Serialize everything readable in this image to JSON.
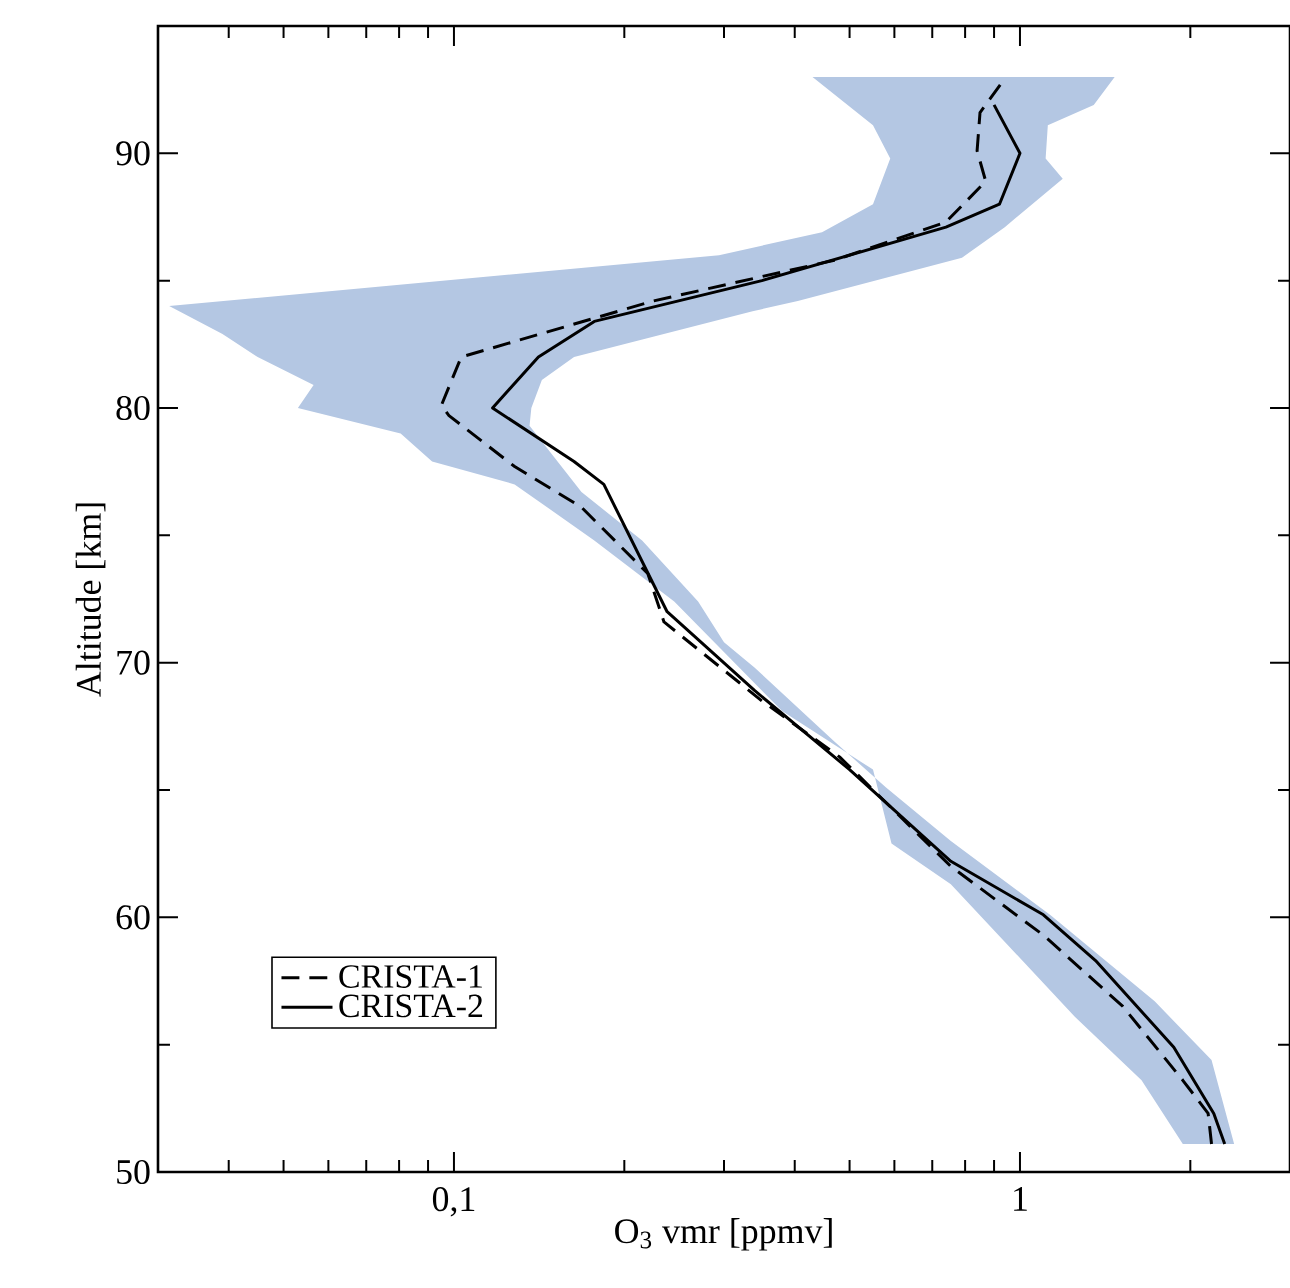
{
  "chart_data": {
    "type": "line",
    "xlabel": "O$_{3}$ vmr [ppmv]",
    "ylabel": "Altitude [km]",
    "log": "x",
    "xlim": [
      0.03,
      3
    ],
    "ylim": [
      50,
      95
    ],
    "xticks": [
      {
        "value": 0.03,
        "label": null
      },
      {
        "value": 0.04,
        "label": null
      },
      {
        "value": 0.05,
        "label": null
      },
      {
        "value": 0.06,
        "label": null
      },
      {
        "value": 0.07,
        "label": null
      },
      {
        "value": 0.08,
        "label": null
      },
      {
        "value": 0.09,
        "label": null
      },
      {
        "value": 0.1,
        "label": "0,1"
      },
      {
        "value": 0.2,
        "label": null
      },
      {
        "value": 0.3,
        "label": null
      },
      {
        "value": 0.4,
        "label": null
      },
      {
        "value": 0.5,
        "label": null
      },
      {
        "value": 0.6,
        "label": null
      },
      {
        "value": 0.7,
        "label": null
      },
      {
        "value": 0.8,
        "label": null
      },
      {
        "value": 0.9,
        "label": null
      },
      {
        "value": 1,
        "label": "1"
      },
      {
        "value": 2,
        "label": null
      },
      {
        "value": 3,
        "label": null
      }
    ],
    "yticks": [
      50,
      {
        "value": 55,
        "label": null
      },
      60,
      {
        "value": 65,
        "label": null
      },
      70,
      {
        "value": 75,
        "label": null
      },
      80,
      {
        "value": 85,
        "label": null
      },
      90
    ],
    "legend": "bottom left",
    "series": [
      {
        "type": "area",
        "color": "#b4c7e3",
        "x": [
          0.43,
          0.55,
          0.59,
          0.55,
          0.447,
          0.294,
          0.0314,
          0.039,
          0.045,
          0.0565,
          0.053,
          0.0805,
          0.0915,
          0.128,
          0.177,
          0.245,
          0.38,
          0.55,
          0.593,
          0.755,
          1.25,
          1.64,
          1.94,
          2.39,
          2.18,
          1.73,
          1.13,
          0.755,
          0.58,
          0.47,
          0.34,
          0.3,
          0.27,
          0.215,
          0.168,
          0.136,
          0.137,
          0.143,
          0.163,
          0.337,
          0.405,
          0.79,
          0.94,
          1.19,
          1.11,
          1.12,
          1.35,
          1.47
        ],
        "values": [
          93,
          91.1,
          89.8,
          88,
          86.9,
          86,
          84,
          82.9,
          82,
          80.9,
          80,
          79,
          77.9,
          77,
          74.8,
          72.4,
          68.1,
          65.8,
          62.9,
          61.3,
          56.1,
          53.6,
          51.1,
          51.1,
          54.4,
          56.7,
          60.1,
          63,
          65.1,
          66.9,
          69.8,
          70.8,
          72.4,
          74.8,
          76.7,
          79.3,
          80,
          81.1,
          82,
          83.8,
          84.2,
          85.9,
          87.1,
          89,
          89.8,
          91.1,
          91.9,
          93
        ]
      },
      {
        "name": "CRISTA-1",
        "color": "#000000",
        "line_style": "dashed",
        "x": [
          0.945,
          0.85,
          0.84,
          0.87,
          0.74,
          0.47,
          0.225,
          0.103,
          0.095,
          0.098,
          0.128,
          0.168,
          0.22,
          0.235,
          0.35,
          0.48,
          0.755,
          1.1,
          1.52,
          1.94,
          2.15,
          2.18
        ],
        "values": [
          93,
          91.6,
          90.1,
          88.9,
          87.3,
          85.8,
          84.2,
          82,
          80.1,
          79.7,
          77.7,
          76.1,
          73.5,
          71.6,
          68.5,
          66.3,
          62,
          59.3,
          56.5,
          53.6,
          52.3,
          51.1
        ]
      },
      {
        "name": "CRISTA-2",
        "color": "#000000",
        "line_style": "solid",
        "x": [
          0.9,
          1.0,
          0.92,
          0.74,
          0.35,
          0.177,
          0.141,
          0.117,
          0.163,
          0.184,
          0.238,
          0.34,
          0.5,
          0.755,
          1.1,
          1.36,
          1.87,
          2.2,
          2.3
        ],
        "values": [
          91.9,
          90,
          88,
          87.1,
          85,
          83.4,
          82,
          80,
          77.9,
          77,
          72,
          68.9,
          65.8,
          62.2,
          60.1,
          58.3,
          54.9,
          52.3,
          51.1
        ]
      }
    ]
  }
}
